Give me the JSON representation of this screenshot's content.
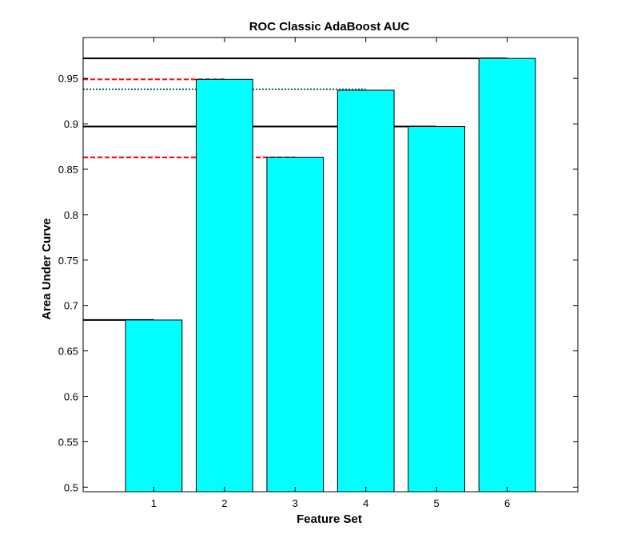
{
  "chart_data": {
    "type": "bar",
    "title": "ROC Classic AdaBoost AUC",
    "xlabel": "Feature Set",
    "ylabel": "Area Under Curve",
    "categories": [
      "1",
      "2",
      "3",
      "4",
      "5",
      "6"
    ],
    "values": [
      0.684,
      0.949,
      0.863,
      0.937,
      0.897,
      0.972
    ],
    "xlim": [
      0.0,
      7.0
    ],
    "ylim": [
      0.495,
      0.995
    ],
    "yticks": [
      0.5,
      0.55,
      0.6,
      0.65,
      0.7,
      0.75,
      0.8,
      0.85,
      0.9,
      0.95
    ],
    "ytick_labels": [
      "0.5",
      "0.55",
      "0.6",
      "0.65",
      "0.7",
      "0.75",
      "0.8",
      "0.85",
      "0.9",
      "0.95"
    ],
    "bar_color": "#00ffff",
    "grid": false,
    "reference_lines": [
      {
        "y": 0.972,
        "x_end": 6.0,
        "style": "solid",
        "color": "#000000"
      },
      {
        "y": 0.949,
        "x_end": 2.0,
        "style": "dashed",
        "color": "#ff0000"
      },
      {
        "y": 0.938,
        "x_end": 4.0,
        "style": "dotted",
        "color": "#006666"
      },
      {
        "y": 0.897,
        "x_end": 5.0,
        "style": "solid",
        "color": "#000000"
      },
      {
        "y": 0.863,
        "x_end": 3.0,
        "style": "dashed",
        "color": "#ff0000"
      },
      {
        "y": 0.684,
        "x_end": 1.0,
        "style": "solid",
        "color": "#000000"
      }
    ]
  }
}
